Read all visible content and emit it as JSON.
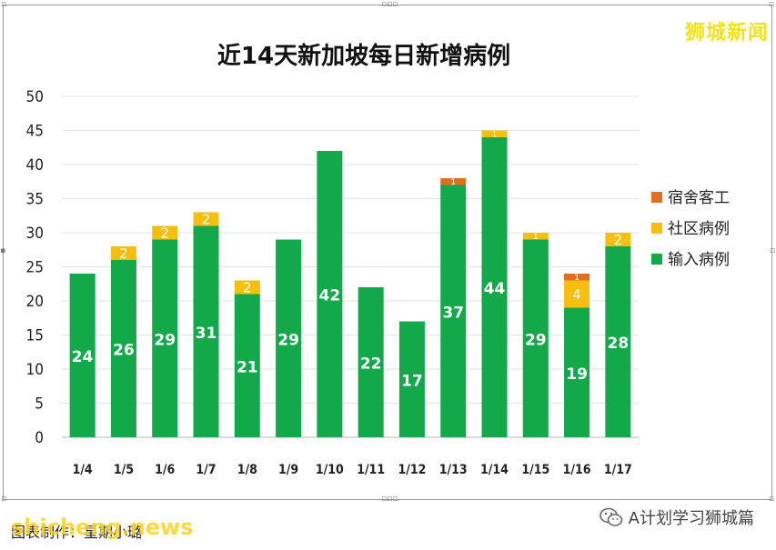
{
  "brand": "狮城新闻",
  "caption": "图表制作：星期小璐",
  "watermark": "shicheng.news",
  "account": "A计划学习狮城篇",
  "chart_data": {
    "type": "bar",
    "stacked": true,
    "title": "近14天新加坡每日新增病例",
    "categories": [
      "1/4",
      "1/5",
      "1/6",
      "1/7",
      "1/8",
      "1/9",
      "1/10",
      "1/11",
      "1/12",
      "1/13",
      "1/14",
      "1/15",
      "1/16",
      "1/17"
    ],
    "series": [
      {
        "name": "输入病例",
        "color": "#13a84a",
        "values": [
          24,
          26,
          29,
          31,
          21,
          29,
          42,
          22,
          17,
          37,
          44,
          29,
          19,
          28
        ]
      },
      {
        "name": "社区病例",
        "color": "#f6be10",
        "values": [
          0,
          2,
          2,
          2,
          2,
          0,
          0,
          0,
          0,
          0,
          1,
          1,
          4,
          2
        ]
      },
      {
        "name": "宿舍客工",
        "color": "#e0701f",
        "values": [
          0,
          0,
          0,
          0,
          0,
          0,
          0,
          0,
          0,
          1,
          0,
          0,
          1,
          0
        ]
      }
    ],
    "legend_order": [
      "宿舍客工",
      "社区病例",
      "输入病例"
    ],
    "ylim": [
      0,
      50
    ],
    "yticks": [
      0,
      5,
      10,
      15,
      20,
      25,
      30,
      35,
      40,
      45,
      50
    ],
    "grid": true,
    "legend_position": "right"
  }
}
